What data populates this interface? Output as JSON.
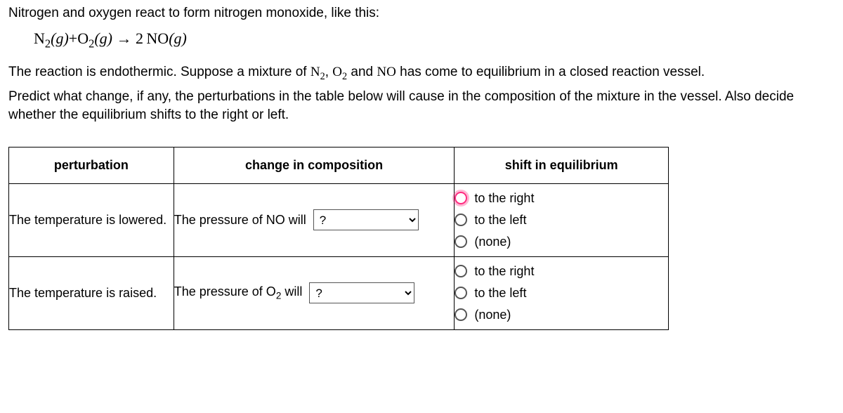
{
  "intro_line": "Nitrogen and oxygen react to form nitrogen monoxide, like this:",
  "equation_parts": {
    "n2": "N",
    "n2_sub": "2",
    "o2": "O",
    "o2_sub": "2",
    "phase": "(g)",
    "arrow": "→",
    "coef_no": "2",
    "no": "NO"
  },
  "para1_a": "The reaction is endothermic. Suppose a mixture of ",
  "para1_n2": "N",
  "para1_n2_sub": "2",
  "para1_b": ", ",
  "para1_o2": "O",
  "para1_o2_sub": "2",
  "para1_c": " and ",
  "para1_no": "NO",
  "para1_d": " has come to equilibrium in a closed reaction vessel.",
  "para2": "Predict what change, if any, the perturbations in the table below will cause in the composition of the mixture in the vessel. Also decide whether the equilibrium shifts to the right or left.",
  "headers": {
    "perturbation": "perturbation",
    "change": "change in composition",
    "shift": "shift in equilibrium"
  },
  "select_placeholder": "?",
  "shift_options": {
    "right": "to the right",
    "left": "to the left",
    "none": "(none)"
  },
  "rows": [
    {
      "perturbation": "The temperature is lowered.",
      "change_prefix": "The pressure of NO will",
      "change_species_has_sub": false,
      "highlight_right": true
    },
    {
      "perturbation": "The temperature is raised.",
      "change_prefix_a": "The pressure of O",
      "change_prefix_sub": "2",
      "change_prefix_b": " will",
      "change_species_has_sub": true,
      "highlight_right": false
    }
  ]
}
